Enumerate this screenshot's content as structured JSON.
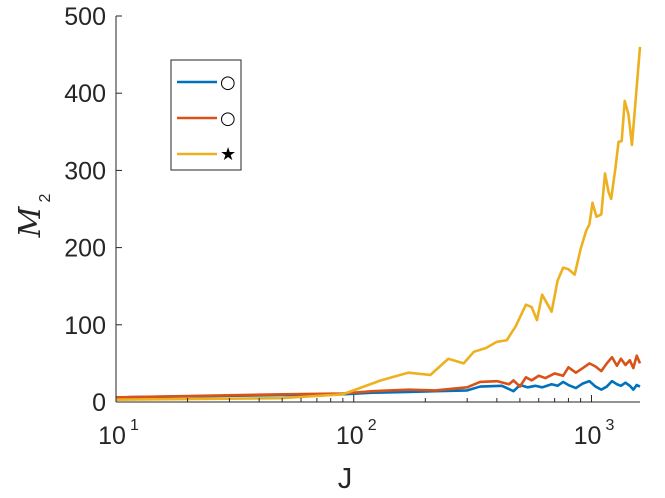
{
  "chart_data": {
    "type": "line",
    "xscale": "log",
    "xlim": [
      10,
      1600
    ],
    "ylim": [
      0,
      500
    ],
    "xlabel": "J",
    "ylabel_main": "M",
    "ylabel_sub": "2",
    "yticks": [
      0,
      100,
      200,
      300,
      400,
      500
    ],
    "xticks": [
      {
        "value": 10,
        "base": "10",
        "exp": "1"
      },
      {
        "value": 100,
        "base": "10",
        "exp": "2"
      },
      {
        "value": 1000,
        "base": "10",
        "exp": "3"
      }
    ],
    "legend_position": "top-left",
    "series": [
      {
        "name": "○",
        "color": "#0072BD",
        "points": [
          [
            10,
            6
          ],
          [
            50,
            9
          ],
          [
            90,
            10
          ],
          [
            120,
            12
          ],
          [
            170,
            13
          ],
          [
            220,
            14
          ],
          [
            300,
            15
          ],
          [
            340,
            20
          ],
          [
            420,
            21
          ],
          [
            470,
            14
          ],
          [
            500,
            22
          ],
          [
            540,
            19
          ],
          [
            580,
            21
          ],
          [
            620,
            19
          ],
          [
            680,
            23
          ],
          [
            720,
            21
          ],
          [
            760,
            26
          ],
          [
            800,
            22
          ],
          [
            860,
            18
          ],
          [
            920,
            24
          ],
          [
            980,
            27
          ],
          [
            1040,
            20
          ],
          [
            1100,
            16
          ],
          [
            1160,
            20
          ],
          [
            1220,
            27
          ],
          [
            1280,
            23
          ],
          [
            1330,
            21
          ],
          [
            1390,
            25
          ],
          [
            1450,
            21
          ],
          [
            1500,
            16
          ],
          [
            1550,
            22
          ],
          [
            1600,
            20
          ]
        ]
      },
      {
        "name": "○",
        "color": "#D95319",
        "points": [
          [
            10,
            6
          ],
          [
            50,
            10
          ],
          [
            90,
            11
          ],
          [
            120,
            14
          ],
          [
            170,
            16
          ],
          [
            220,
            15
          ],
          [
            300,
            19
          ],
          [
            340,
            26
          ],
          [
            400,
            27
          ],
          [
            450,
            23
          ],
          [
            470,
            28
          ],
          [
            500,
            20
          ],
          [
            530,
            32
          ],
          [
            560,
            28
          ],
          [
            600,
            34
          ],
          [
            640,
            31
          ],
          [
            700,
            37
          ],
          [
            760,
            34
          ],
          [
            800,
            45
          ],
          [
            860,
            38
          ],
          [
            920,
            44
          ],
          [
            980,
            50
          ],
          [
            1040,
            46
          ],
          [
            1100,
            40
          ],
          [
            1160,
            50
          ],
          [
            1220,
            58
          ],
          [
            1280,
            47
          ],
          [
            1330,
            56
          ],
          [
            1390,
            48
          ],
          [
            1450,
            54
          ],
          [
            1500,
            44
          ],
          [
            1550,
            60
          ],
          [
            1600,
            50
          ]
        ]
      },
      {
        "name": "★",
        "color": "#EDB120",
        "points": [
          [
            10,
            3
          ],
          [
            50,
            5
          ],
          [
            90,
            10
          ],
          [
            130,
            28
          ],
          [
            170,
            38
          ],
          [
            210,
            35
          ],
          [
            250,
            56
          ],
          [
            290,
            50
          ],
          [
            320,
            65
          ],
          [
            360,
            70
          ],
          [
            400,
            78
          ],
          [
            440,
            80
          ],
          [
            480,
            98
          ],
          [
            530,
            126
          ],
          [
            560,
            123
          ],
          [
            590,
            106
          ],
          [
            620,
            139
          ],
          [
            680,
            117
          ],
          [
            720,
            157
          ],
          [
            760,
            174
          ],
          [
            800,
            172
          ],
          [
            850,
            165
          ],
          [
            900,
            198
          ],
          [
            950,
            222
          ],
          [
            980,
            230
          ],
          [
            1010,
            258
          ],
          [
            1050,
            240
          ],
          [
            1100,
            243
          ],
          [
            1140,
            296
          ],
          [
            1180,
            272
          ],
          [
            1210,
            263
          ],
          [
            1260,
            302
          ],
          [
            1300,
            337
          ],
          [
            1340,
            338
          ],
          [
            1380,
            390
          ],
          [
            1430,
            373
          ],
          [
            1480,
            333
          ],
          [
            1600,
            460
          ]
        ]
      }
    ]
  }
}
